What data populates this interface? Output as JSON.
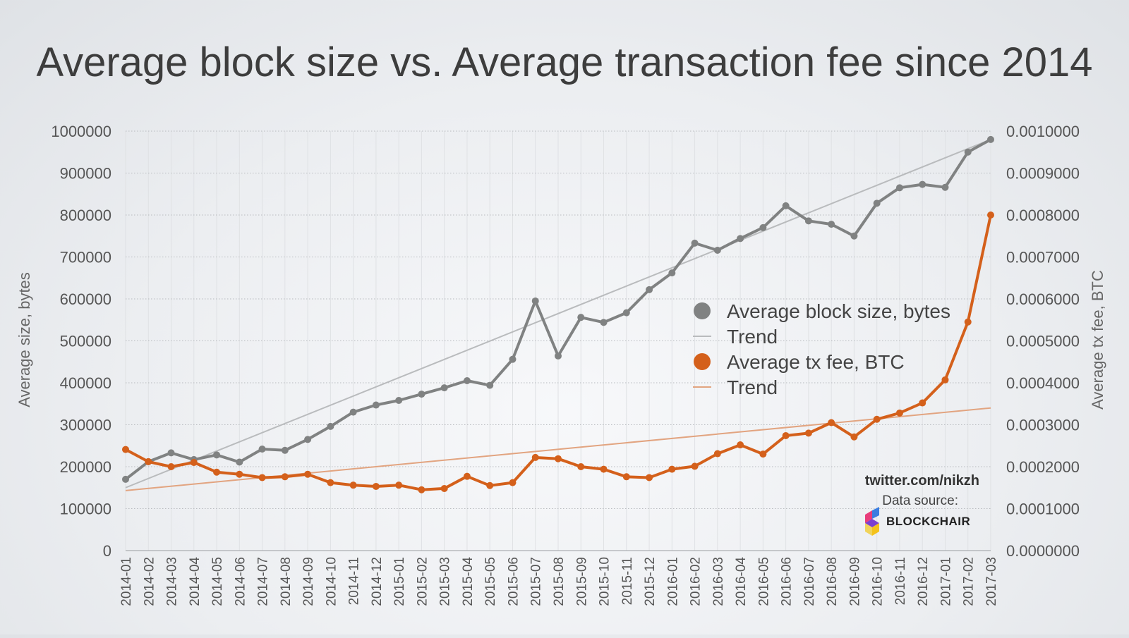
{
  "chart_data": {
    "type": "line",
    "title": "Average block size vs. Average transaction fee since 2014",
    "xlabel": "",
    "ylabel_left": "Average size, bytes",
    "ylabel_right": "Average tx fee, BTC",
    "ylim_left": [
      0,
      1000000
    ],
    "ylim_right": [
      0,
      0.001
    ],
    "yticks_left": [
      "0",
      "100000",
      "200000",
      "300000",
      "400000",
      "500000",
      "600000",
      "700000",
      "800000",
      "900000",
      "1000000"
    ],
    "yticks_right": [
      "0.0000000",
      "0.0001000",
      "0.0002000",
      "0.0003000",
      "0.0004000",
      "0.0005000",
      "0.0006000",
      "0.0007000",
      "0.0008000",
      "0.0009000",
      "0.0010000"
    ],
    "grid": "horizontal dotted and vertical",
    "legend_position": "center-right",
    "categories": [
      "2014-01",
      "2014-02",
      "2014-03",
      "2014-04",
      "2014-05",
      "2014-06",
      "2014-07",
      "2014-08",
      "2014-09",
      "2014-10",
      "2014-11",
      "2014-12",
      "2015-01",
      "2015-02",
      "2015-03",
      "2015-04",
      "2015-05",
      "2015-06",
      "2015-07",
      "2015-08",
      "2015-09",
      "2015-10",
      "2015-11",
      "2015-12",
      "2016-01",
      "2016-02",
      "2016-03",
      "2016-04",
      "2016-05",
      "2016-06",
      "2016-07",
      "2016-08",
      "2016-09",
      "2016-10",
      "2016-11",
      "2016-12",
      "2017-01",
      "2017-02",
      "2017-03"
    ],
    "series": [
      {
        "name": "Average block size, bytes",
        "axis": "left",
        "color": "#808282",
        "values": [
          170000,
          212000,
          233000,
          217000,
          228000,
          211000,
          242000,
          239000,
          265000,
          296000,
          330000,
          347000,
          358000,
          373000,
          388000,
          405000,
          394000,
          456000,
          595000,
          464000,
          556000,
          544000,
          567000,
          622000,
          662000,
          733000,
          716000,
          744000,
          770000,
          822000,
          786000,
          778000,
          750000,
          828000,
          865000,
          873000,
          866000,
          950000,
          980000
        ]
      },
      {
        "name": "Average tx fee, BTC",
        "axis": "right",
        "color": "#d4601b",
        "values": [
          0.000241,
          0.000212,
          0.0002,
          0.00021,
          0.000187,
          0.000182,
          0.000174,
          0.000176,
          0.000182,
          0.000162,
          0.000156,
          0.000153,
          0.000156,
          0.000145,
          0.000148,
          0.000177,
          0.000155,
          0.000162,
          0.000222,
          0.000219,
          0.0002,
          0.000194,
          0.000176,
          0.000174,
          0.000194,
          0.000201,
          0.000231,
          0.000252,
          0.00023,
          0.000274,
          0.00028,
          0.000305,
          0.000271,
          0.000313,
          0.000328,
          0.000352,
          0.000407,
          0.000545,
          0.0008
        ]
      }
    ],
    "trends": [
      {
        "name": "Trend",
        "axis": "left",
        "color": "#b9bbbd",
        "values": [
          150000,
          980000
        ]
      },
      {
        "name": "Trend",
        "axis": "right",
        "color": "#e2a480",
        "values": [
          0.000143,
          0.00034
        ]
      }
    ]
  },
  "credits": {
    "twitter": "twitter.com/nikzh",
    "source_label": "Data source:",
    "brand": "BLOCKCHAIR"
  }
}
